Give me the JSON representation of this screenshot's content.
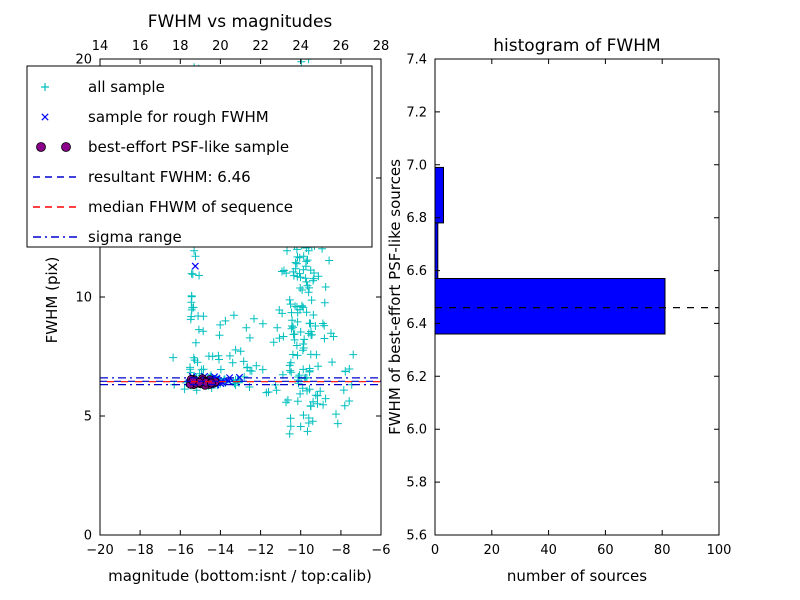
{
  "figure": {
    "background": "#ffffff"
  },
  "chart_data": [
    {
      "id": "fwhm-vs-magnitudes",
      "type": "scatter",
      "title": "FWHM vs magnitudes",
      "xlabel": "magnitude (bottom:isnt / top:calib)",
      "ylabel": "FWHM (pix)",
      "xlim": [
        -20,
        -6
      ],
      "xlim_top": [
        14,
        28
      ],
      "ylim": [
        0,
        20
      ],
      "grid": false,
      "legend_position": "upper-left",
      "xticks_bottom": {
        "values": [
          -20,
          -18,
          -16,
          -14,
          -12,
          -10,
          -8,
          -6
        ],
        "labels": [
          "−20",
          "−18",
          "−16",
          "−14",
          "−12",
          "−10",
          "−8",
          "−6"
        ]
      },
      "xticks_top": {
        "values": [
          14,
          16,
          18,
          20,
          22,
          24,
          26,
          28
        ],
        "labels": [
          "14",
          "16",
          "18",
          "20",
          "22",
          "24",
          "26",
          "28"
        ]
      },
      "yticks": {
        "values": [
          0,
          5,
          10,
          15,
          20
        ],
        "labels": [
          "0",
          "5",
          "10",
          "15",
          "20"
        ]
      },
      "seed": 42,
      "series": [
        {
          "name": "all sample",
          "marker": "plus",
          "color": "#00bfbf",
          "clusters": [
            {
              "dist": "gauss",
              "n": 130,
              "cx": -9.8,
              "sx": 0.5,
              "cy": 13.4,
              "sy": 2.1,
              "ymin": 4.2,
              "ymax": 20
            },
            {
              "dist": "gauss",
              "n": 70,
              "cx": -9.9,
              "sx": 0.55,
              "cy": 8.2,
              "sy": 1.5,
              "ymin": 4.2,
              "ymax": 20
            },
            {
              "dist": "gauss",
              "n": 45,
              "cx": -9.7,
              "sx": 0.4,
              "cy": 18.6,
              "sy": 1.3,
              "ymin": 4.2,
              "ymax": 20
            },
            {
              "dist": "gauss",
              "n": 16,
              "cx": -9.5,
              "sx": 0.8,
              "cy": 5.1,
              "sy": 0.5,
              "ymin": 4.2,
              "ymax": 20
            },
            {
              "dist": "uniform",
              "n": 42,
              "x0": -15.55,
              "x1": -15.05,
              "y0": 6.5,
              "y1": 20
            },
            {
              "dist": "gauss",
              "n": 38,
              "cx": -13.8,
              "sx": 1.2,
              "cy": 7.2,
              "sy": 0.9,
              "ymin": 6.0,
              "ymax": 11
            },
            {
              "dist": "gauss",
              "n": 55,
              "cx": -14.6,
              "sx": 0.8,
              "cy": 6.45,
              "sy": 0.12,
              "ymin": 6.1,
              "ymax": 6.9
            },
            {
              "dist": "uniform",
              "n": 12,
              "x0": -12.0,
              "x1": -10.3,
              "y0": 5.8,
              "y1": 9.5
            },
            {
              "dist": "uniform",
              "n": 10,
              "x0": -8.8,
              "x1": -7.3,
              "y0": 5.0,
              "y1": 7.6
            }
          ],
          "points": []
        },
        {
          "name": "sample for rough FWHM",
          "marker": "x",
          "color": "#0000ff",
          "clusters": [
            {
              "dist": "gauss",
              "n": 20,
              "cx": -14.6,
              "sx": 0.7,
              "cy": 6.52,
              "sy": 0.1,
              "ymin": 6.2,
              "ymax": 6.9
            }
          ],
          "points": [
            [
              -15.25,
              11.3
            ],
            [
              -13.05,
              6.62
            ],
            [
              -15.55,
              6.4
            ]
          ]
        },
        {
          "name": "best-effort PSF-like sample",
          "marker": "circle",
          "color": "#8b008b",
          "edge": "#000000",
          "clusters": [
            {
              "dist": "gauss",
              "n": 30,
              "cx": -14.9,
              "sx": 0.33,
              "cy": 6.42,
              "sy": 0.06,
              "xmin": -15.6,
              "xmax": -14.15,
              "ymin": 6.25,
              "ymax": 6.6
            }
          ],
          "points": []
        }
      ],
      "hlines": [
        {
          "name": "resultant-fwhm-line",
          "y": 6.46,
          "style": "dashed",
          "color": "#0000cd"
        },
        {
          "name": "median-fwhm-line",
          "y": 6.44,
          "style": "dashed",
          "color": "#ff0000"
        },
        {
          "name": "sigma-upper-line",
          "y": 6.6,
          "style": "dashdot",
          "color": "#0000cd"
        },
        {
          "name": "sigma-lower-line",
          "y": 6.32,
          "style": "dashdot",
          "color": "#0000cd"
        }
      ],
      "legend": {
        "entries": [
          {
            "label": "all sample",
            "glyph": "plus",
            "color": "#00bfbf"
          },
          {
            "label": "sample for rough FWHM",
            "glyph": "x",
            "color": "#0000ff"
          },
          {
            "label": "best-effort PSF-like sample",
            "glyph": "circles",
            "color": "#8b008b",
            "edge": "#000000"
          },
          {
            "label": "resultant FWHM: 6.46",
            "glyph": "dash",
            "color": "#0000cd"
          },
          {
            "label": "median FHWM of sequence",
            "glyph": "dash",
            "color": "#ff0000"
          },
          {
            "label": "sigma range",
            "glyph": "dashdot",
            "color": "#0000cd"
          }
        ]
      }
    },
    {
      "id": "fwhm-histogram",
      "type": "bar",
      "orientation": "horizontal",
      "title": "histogram of FWHM",
      "xlabel": "number of sources",
      "ylabel": "FWHM of best-effort PSF-like sources",
      "xlim": [
        0,
        100
      ],
      "ylim": [
        5.6,
        7.4
      ],
      "grid": false,
      "xticks": {
        "values": [
          0,
          20,
          40,
          60,
          80,
          100
        ],
        "labels": [
          "0",
          "20",
          "40",
          "60",
          "80",
          "100"
        ]
      },
      "yticks": {
        "values": [
          5.6,
          5.8,
          6.0,
          6.2,
          6.4,
          6.6,
          6.8,
          7.0,
          7.2,
          7.4
        ],
        "labels": [
          "5.6",
          "5.8",
          "6.0",
          "6.2",
          "6.4",
          "6.6",
          "6.8",
          "7.0",
          "7.2",
          "7.4"
        ]
      },
      "bars": [
        {
          "y0": 6.36,
          "y1": 6.57,
          "count": 81
        },
        {
          "y0": 6.57,
          "y1": 6.78,
          "count": 1
        },
        {
          "y0": 6.78,
          "y1": 6.99,
          "count": 3
        }
      ],
      "bar_color": "#0000ff",
      "bar_edge": "#000000",
      "marker_line": {
        "y": 6.46,
        "style": "dashed",
        "color": "#000000"
      }
    }
  ]
}
